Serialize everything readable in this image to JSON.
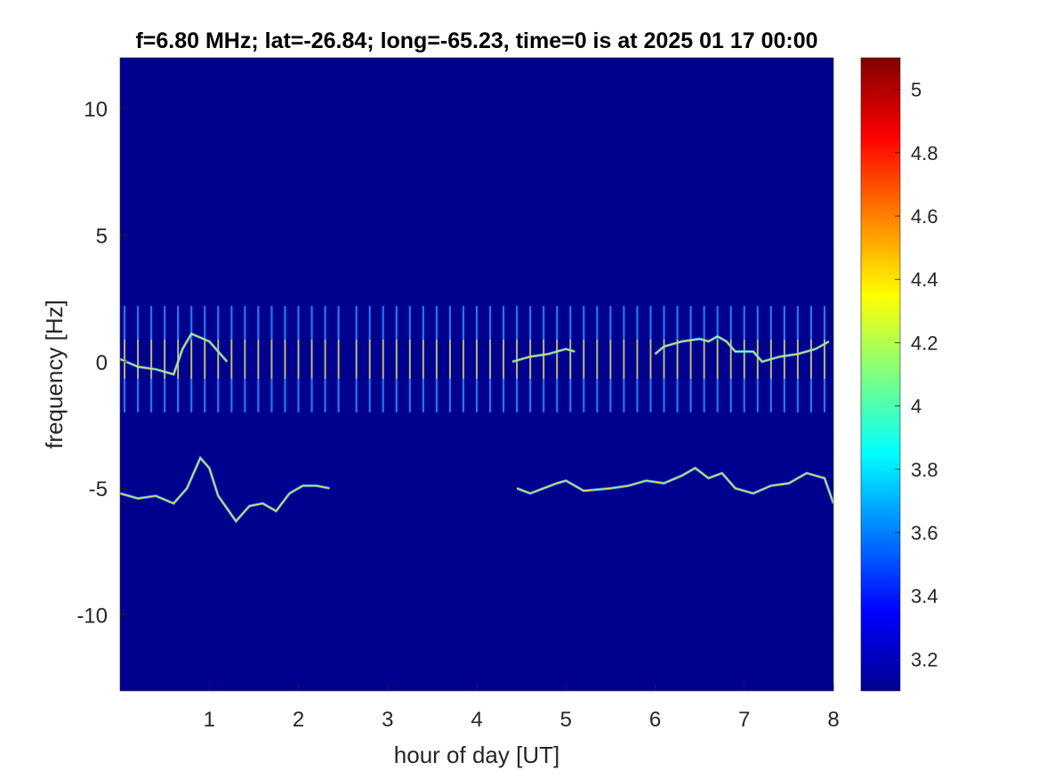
{
  "chart_data": {
    "type": "heatmap",
    "title": "f=6.80 MHz;  lat=-26.84; long=-65.23, time=0 is at 2025 01 17 00:00",
    "xlabel": "hour of day [UT]",
    "ylabel": "frequency [Hz]",
    "xlim": [
      0,
      8
    ],
    "ylim": [
      -13,
      12
    ],
    "xticks": [
      1,
      2,
      3,
      4,
      5,
      6,
      7,
      8
    ],
    "xtick_labels": [
      "1",
      "2",
      "3",
      "4",
      "5",
      "6",
      "7",
      "8"
    ],
    "yticks": [
      10,
      5,
      0,
      -5,
      -10
    ],
    "ytick_labels": [
      "10",
      "5",
      "0",
      "-5",
      "-10"
    ],
    "colormap": "jet",
    "background_color": "#00008f",
    "colorbar": {
      "range": [
        3.1,
        5.1
      ],
      "ticks": [
        5,
        4.8,
        4.6,
        4.4,
        4.2,
        4,
        3.8,
        3.6,
        3.4,
        3.2
      ],
      "tick_labels": [
        "5",
        "4.8",
        "4.6",
        "4.4",
        "4.2",
        "4",
        "3.8",
        "3.6",
        "3.4",
        "3.2"
      ]
    },
    "vertical_streaks": {
      "x": [
        0.05,
        0.2,
        0.35,
        0.5,
        0.65,
        0.8,
        0.95,
        1.1,
        1.25,
        1.4,
        1.55,
        1.7,
        1.85,
        2.0,
        2.15,
        2.3,
        2.45,
        2.65,
        2.8,
        2.95,
        3.1,
        3.25,
        3.4,
        3.55,
        3.7,
        3.85,
        4.0,
        4.15,
        4.3,
        4.45,
        4.6,
        4.75,
        4.9,
        5.05,
        5.2,
        5.35,
        5.5,
        5.65,
        5.8,
        5.95,
        6.1,
        6.25,
        6.4,
        6.55,
        6.7,
        6.85,
        7.0,
        7.15,
        7.3,
        7.45,
        7.6,
        7.75,
        7.9
      ],
      "y_range": [
        -2,
        2.2
      ]
    },
    "traces": [
      {
        "x": [
          0,
          0.2,
          0.4,
          0.6,
          0.75,
          0.9,
          1.0,
          1.1,
          1.2,
          1.3,
          1.45,
          1.6,
          1.75,
          1.9,
          2.05,
          2.2,
          2.35
        ],
        "y": [
          -5.2,
          -5.4,
          -5.3,
          -5.6,
          -5.0,
          -3.8,
          -4.2,
          -5.3,
          -5.8,
          -6.3,
          -5.7,
          -5.6,
          -5.9,
          -5.2,
          -4.9,
          -4.9,
          -5.0
        ]
      },
      {
        "x": [
          4.45,
          4.6,
          4.75,
          4.9,
          5.0,
          5.2,
          5.5,
          5.7,
          5.9,
          6.1,
          6.3,
          6.45,
          6.6,
          6.75,
          6.9,
          7.1,
          7.3,
          7.5,
          7.7,
          7.9,
          8.0
        ],
        "y": [
          -5.0,
          -5.2,
          -5.0,
          -4.8,
          -4.7,
          -5.1,
          -5.0,
          -4.9,
          -4.7,
          -4.8,
          -4.5,
          -4.2,
          -4.6,
          -4.4,
          -5.0,
          -5.2,
          -4.9,
          -4.8,
          -4.4,
          -4.6,
          -5.6
        ]
      },
      {
        "x": [
          0,
          0.2,
          0.4,
          0.6,
          0.7,
          0.8,
          1.0,
          1.1,
          1.2
        ],
        "y": [
          0.1,
          -0.2,
          -0.3,
          -0.5,
          0.5,
          1.1,
          0.8,
          0.4,
          0.0
        ]
      },
      {
        "x": [
          4.4,
          4.6,
          4.8,
          5.0,
          5.1
        ],
        "y": [
          0.0,
          0.2,
          0.3,
          0.5,
          0.4
        ]
      },
      {
        "x": [
          6.0,
          6.1,
          6.3,
          6.5,
          6.6,
          6.7,
          6.8,
          6.9,
          7.1,
          7.2,
          7.4,
          7.6,
          7.8,
          7.95
        ],
        "y": [
          0.3,
          0.6,
          0.8,
          0.9,
          0.8,
          1.0,
          0.8,
          0.4,
          0.4,
          0.0,
          0.2,
          0.3,
          0.5,
          0.8
        ]
      }
    ]
  }
}
